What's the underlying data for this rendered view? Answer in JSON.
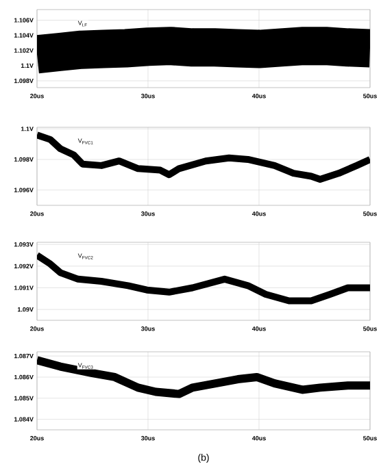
{
  "chart_data": [
    {
      "type": "line",
      "x": [
        20,
        22,
        24,
        26,
        28,
        30,
        32,
        34,
        36,
        38,
        40,
        42,
        44,
        46,
        48,
        50
      ],
      "grid": true,
      "xlim": [
        20,
        50
      ],
      "xticks": [
        {
          "value": 20,
          "label": "20us"
        },
        {
          "value": 30,
          "label": "30us"
        },
        {
          "value": 40,
          "label": "40us"
        },
        {
          "value": 50,
          "label": "50us"
        }
      ],
      "ylim": [
        1.0971,
        1.1074
      ],
      "yticks": [
        {
          "value": 1.098,
          "label": "1.098V"
        },
        {
          "value": 1.1,
          "label": "1.1V"
        },
        {
          "value": 1.102,
          "label": "1.102V"
        },
        {
          "value": 1.104,
          "label": "1.104V"
        },
        {
          "value": 1.106,
          "label": "1.106V"
        }
      ],
      "series": [
        {
          "name": "V$_{LF}$",
          "color": "#000000",
          "values": [
            1.1015,
            1.1018,
            1.1021,
            1.1022,
            1.1023,
            1.1025,
            1.1026,
            1.1024,
            1.1024,
            1.1023,
            1.1022,
            1.1024,
            1.1026,
            1.1026,
            1.1024,
            1.1023
          ]
        }
      ]
    },
    {
      "type": "line",
      "x": [
        20,
        21.2,
        22.1,
        23.3,
        24.1,
        25.8,
        27.4,
        29.1,
        31.1,
        31.9,
        32.8,
        35.2,
        37.3,
        39,
        41.4,
        43.1,
        44.7,
        45.5,
        47.2,
        48.8,
        50
      ],
      "grid": true,
      "xlim": [
        20,
        50
      ],
      "xticks": [
        {
          "value": 20,
          "label": "20us"
        },
        {
          "value": 30,
          "label": "30us"
        },
        {
          "value": 40,
          "label": "40us"
        },
        {
          "value": 50,
          "label": "50us"
        }
      ],
      "ylim": [
        1.095,
        1.1001
      ],
      "yticks": [
        {
          "value": 1.096,
          "label": "1.096V"
        },
        {
          "value": 1.098,
          "label": "1.098V"
        },
        {
          "value": 1.1,
          "label": "1.1V"
        }
      ],
      "series": [
        {
          "name": "V$_{FVC1}$",
          "color": "#000000",
          "values": [
            1.0996,
            1.0993,
            1.0987,
            1.0983,
            1.0977,
            1.0976,
            1.0979,
            1.0974,
            1.0973,
            1.097,
            1.0974,
            1.0979,
            1.0981,
            1.098,
            1.0976,
            1.0971,
            1.0969,
            1.0967,
            1.0971,
            1.0976,
            1.098
          ]
        }
      ]
    },
    {
      "type": "line",
      "x": [
        20,
        21.2,
        22.1,
        23.7,
        25.8,
        28.2,
        29.9,
        31.9,
        34,
        36.9,
        39,
        40.6,
        42.7,
        44.7,
        46.4,
        48,
        50
      ],
      "grid": true,
      "xlim": [
        20,
        50
      ],
      "xticks": [
        {
          "value": 20,
          "label": "20us"
        },
        {
          "value": 30,
          "label": "30us"
        },
        {
          "value": 40,
          "label": "40us"
        },
        {
          "value": 50,
          "label": "50us"
        }
      ],
      "ylim": [
        1.0895,
        1.0931
      ],
      "yticks": [
        {
          "value": 1.09,
          "label": "1.09V"
        },
        {
          "value": 1.091,
          "label": "1.091V"
        },
        {
          "value": 1.092,
          "label": "1.092V"
        },
        {
          "value": 1.093,
          "label": "1.093V"
        }
      ],
      "series": [
        {
          "name": "V$_{FVC2}$",
          "color": "#000000",
          "values": [
            1.0925,
            1.0921,
            1.0917,
            1.0914,
            1.0913,
            1.0911,
            1.0909,
            1.0908,
            1.091,
            1.0914,
            1.0911,
            1.0907,
            1.0904,
            1.0904,
            1.0907,
            1.091,
            1.091
          ]
        }
      ]
    },
    {
      "type": "line",
      "x": [
        20,
        22.1,
        24.9,
        27,
        29.1,
        30.7,
        32.8,
        34,
        36.1,
        38.1,
        39.8,
        41.4,
        43.9,
        45.5,
        48,
        50
      ],
      "grid": true,
      "xlim": [
        20,
        50
      ],
      "xticks": [
        {
          "value": 20,
          "label": "20us"
        },
        {
          "value": 30,
          "label": "30us"
        },
        {
          "value": 40,
          "label": "40us"
        },
        {
          "value": 50,
          "label": "50us"
        }
      ],
      "ylim": [
        1.0835,
        1.0872
      ],
      "yticks": [
        {
          "value": 1.084,
          "label": "1.084V"
        },
        {
          "value": 1.085,
          "label": "1.085V"
        },
        {
          "value": 1.086,
          "label": "1.086V"
        },
        {
          "value": 1.087,
          "label": "1.087V"
        }
      ],
      "annotations": [
        "(b)"
      ],
      "series": [
        {
          "name": "V$_{FVC3}$",
          "color": "#000000",
          "values": [
            1.0868,
            1.0865,
            1.0862,
            1.086,
            1.0855,
            1.0853,
            1.0852,
            1.0855,
            1.0857,
            1.0859,
            1.086,
            1.0857,
            1.0854,
            1.0855,
            1.0856,
            1.0856
          ]
        }
      ]
    }
  ]
}
